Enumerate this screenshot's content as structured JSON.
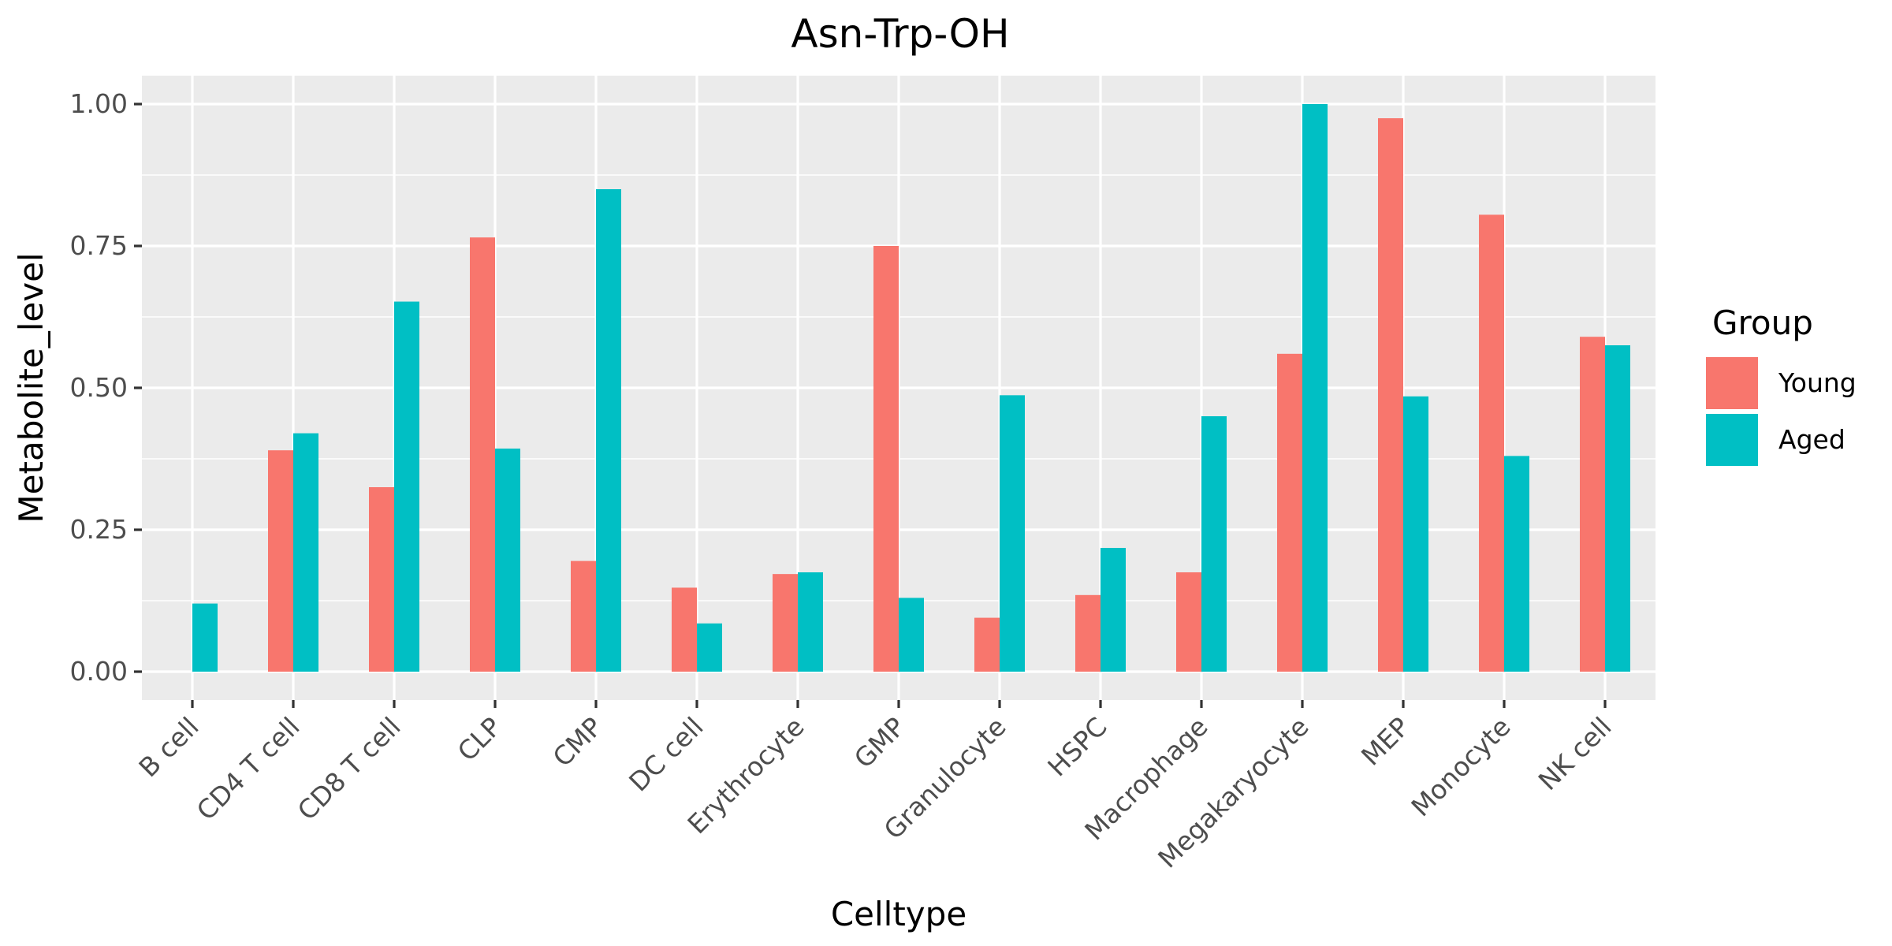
{
  "chart_data": {
    "type": "bar",
    "title": "Asn-Trp-OH",
    "xlabel": "Celltype",
    "ylabel": "Metabolite_level",
    "ylim": [
      -0.05,
      1.05
    ],
    "yticks": [
      0.0,
      0.25,
      0.5,
      0.75,
      1.0
    ],
    "ytick_labels": [
      "0.00",
      "0.25",
      "0.50",
      "0.75",
      "1.00"
    ],
    "categories": [
      "B cell",
      "CD4 T cell",
      "CD8 T cell",
      "CLP",
      "CMP",
      "DC cell",
      "Erythrocyte",
      "GMP",
      "Granulocyte",
      "HSPC",
      "Macrophage",
      "Megakaryocyte",
      "MEP",
      "Monocyte",
      "NK cell"
    ],
    "series": [
      {
        "name": "Young",
        "color": "#F8766D",
        "values": [
          null,
          0.39,
          0.325,
          0.765,
          0.195,
          0.148,
          0.172,
          0.75,
          0.095,
          0.135,
          0.175,
          0.56,
          0.975,
          0.805,
          0.59
        ]
      },
      {
        "name": "Aged",
        "color": "#00BFC4",
        "values": [
          0.12,
          0.42,
          0.652,
          0.393,
          0.85,
          0.085,
          0.175,
          0.13,
          0.487,
          0.218,
          0.45,
          1.0,
          0.485,
          0.38,
          0.575
        ]
      }
    ],
    "legend": {
      "title": "Group",
      "position": "right"
    },
    "grid": true,
    "panel_background": "#EBEBEB",
    "grid_color": "#FFFFFF",
    "tick_color": "#333333"
  }
}
